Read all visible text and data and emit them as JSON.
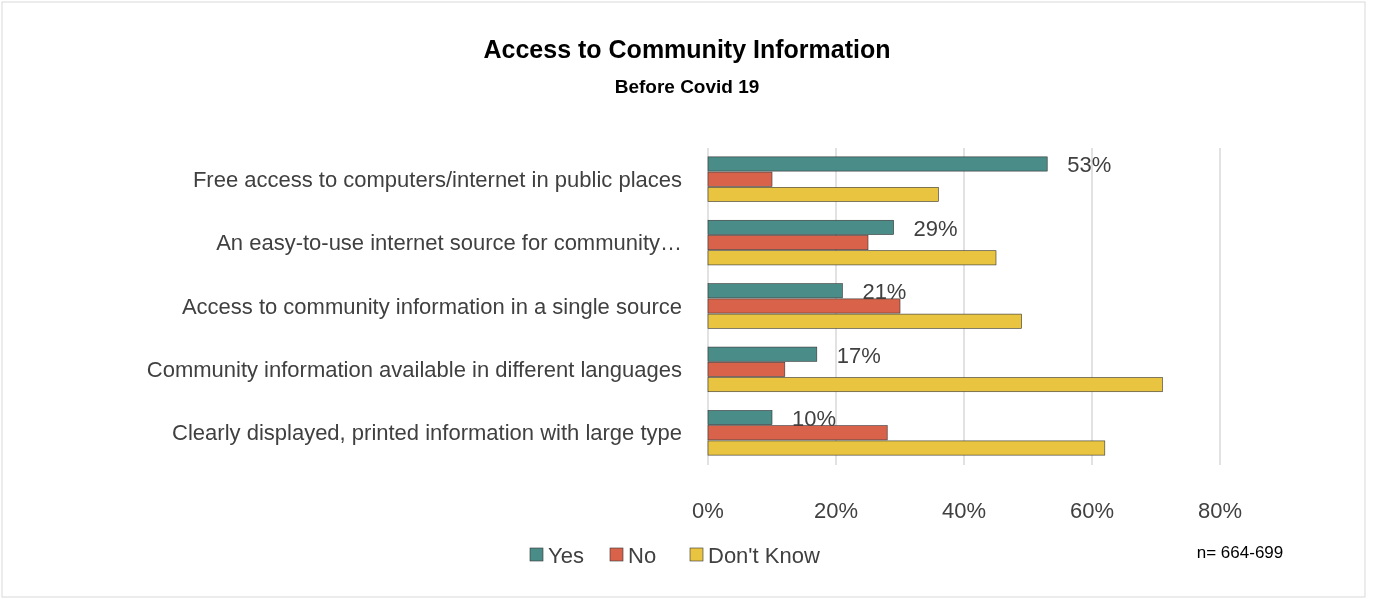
{
  "chart_data": {
    "type": "bar",
    "orientation": "horizontal",
    "title": "Access to Community Information",
    "subtitle": "Before Covid 19",
    "categories": [
      "Free access to computers/internet in public places",
      "An easy-to-use internet source for community…",
      "Access to community information in a single source",
      "Community information available in different languages",
      "Clearly displayed, printed information with large type"
    ],
    "series": [
      {
        "name": "Yes",
        "color": "#4a8c88",
        "values": [
          53,
          29,
          21,
          17,
          10
        ],
        "value_labels": [
          "53%",
          "29%",
          "21%",
          "17%",
          "10%"
        ]
      },
      {
        "name": "No",
        "color": "#d9634a",
        "values": [
          10,
          25,
          30,
          12,
          28
        ]
      },
      {
        "name": "Don't Know",
        "color": "#e8c441",
        "values": [
          36,
          45,
          49,
          71,
          62
        ]
      }
    ],
    "xlim": [
      0,
      80
    ],
    "xticks": [
      {
        "value": 0,
        "label": "0%"
      },
      {
        "value": 20,
        "label": "20%"
      },
      {
        "value": 40,
        "label": "40%"
      },
      {
        "value": 60,
        "label": "60%"
      },
      {
        "value": 80,
        "label": "80%"
      }
    ],
    "grid": "x",
    "legend": "bottom",
    "annotations": [
      "n=  664-699"
    ]
  }
}
